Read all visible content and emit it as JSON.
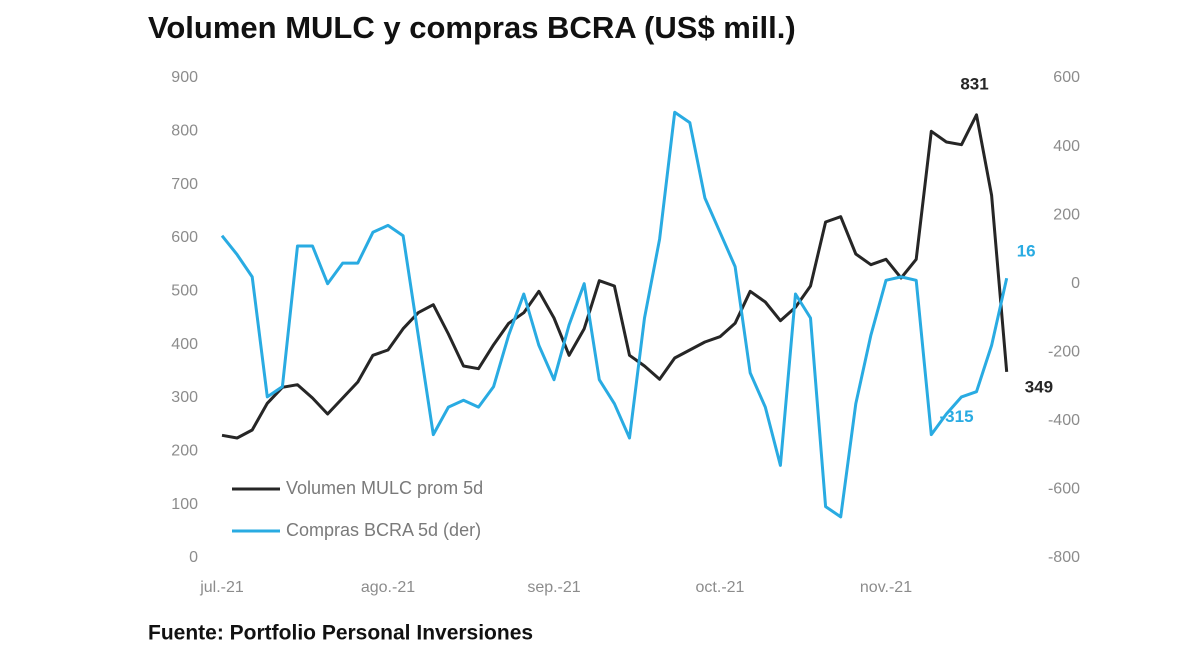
{
  "chart_data": {
    "type": "line",
    "title": "Volumen MULC y compras BCRA (US$ mill.)",
    "source": "Fuente: Portfolio Personal Inversiones",
    "categories": [
      "jul.-21",
      null,
      null,
      null,
      null,
      null,
      null,
      null,
      null,
      null,
      null,
      "ago.-21",
      null,
      null,
      null,
      null,
      null,
      null,
      null,
      null,
      null,
      null,
      "sep.-21",
      null,
      null,
      null,
      null,
      null,
      null,
      null,
      null,
      null,
      null,
      "oct.-21",
      null,
      null,
      null,
      null,
      null,
      null,
      null,
      null,
      null,
      null,
      "nov.-21",
      null,
      null,
      null,
      null,
      null,
      null,
      null,
      null
    ],
    "series": [
      {
        "name": "Volumen MULC prom 5d",
        "color": "#262626",
        "values": [
          230,
          225,
          240,
          290,
          320,
          325,
          300,
          270,
          300,
          330,
          380,
          390,
          430,
          460,
          475,
          420,
          360,
          355,
          400,
          440,
          460,
          500,
          450,
          380,
          430,
          520,
          510,
          380,
          360,
          335,
          375,
          390,
          405,
          415,
          440,
          500,
          480,
          445,
          470,
          510,
          630,
          640,
          570,
          550,
          560,
          525,
          560,
          800,
          780,
          775,
          831,
          680,
          349
        ],
        "value_labels": [
          null,
          null,
          null,
          null,
          null,
          null,
          null,
          null,
          null,
          null,
          null,
          null,
          null,
          null,
          null,
          null,
          null,
          null,
          null,
          null,
          null,
          null,
          null,
          null,
          null,
          null,
          null,
          null,
          null,
          null,
          null,
          null,
          null,
          null,
          null,
          null,
          null,
          null,
          null,
          null,
          null,
          null,
          null,
          null,
          null,
          null,
          null,
          null,
          null,
          null,
          "831",
          null,
          "349"
        ]
      },
      {
        "name": "Compras BCRA 5d (der)",
        "color": "#29abe2",
        "axis": "y2",
        "values": [
          140,
          85,
          20,
          -330,
          -300,
          110,
          110,
          0,
          60,
          60,
          150,
          170,
          140,
          -150,
          -440,
          -360,
          -340,
          -360,
          -300,
          -150,
          -30,
          -180,
          -280,
          -120,
          0,
          -280,
          -350,
          -450,
          -100,
          130,
          500,
          470,
          250,
          150,
          50,
          -260,
          -360,
          -530,
          -30,
          -100,
          -650,
          -680,
          -350,
          -150,
          10,
          20,
          10,
          -440,
          -380,
          -330,
          -315,
          -180,
          16
        ],
        "value_labels": [
          null,
          null,
          null,
          null,
          null,
          null,
          null,
          null,
          null,
          null,
          null,
          null,
          null,
          null,
          null,
          null,
          null,
          null,
          null,
          null,
          null,
          null,
          null,
          null,
          null,
          null,
          null,
          null,
          null,
          null,
          null,
          null,
          null,
          null,
          null,
          null,
          null,
          null,
          null,
          null,
          null,
          null,
          null,
          null,
          null,
          null,
          null,
          null,
          null,
          null,
          "-315",
          null,
          "16"
        ]
      }
    ],
    "ylim": [
      0,
      900
    ],
    "yticks": [
      0,
      100,
      200,
      300,
      400,
      500,
      600,
      700,
      800,
      900
    ],
    "y2lim": [
      -800,
      600
    ],
    "y2ticks": [
      -800,
      -600,
      -400,
      -200,
      0,
      200,
      400,
      600
    ],
    "legend": "lower left",
    "grid": false
  }
}
